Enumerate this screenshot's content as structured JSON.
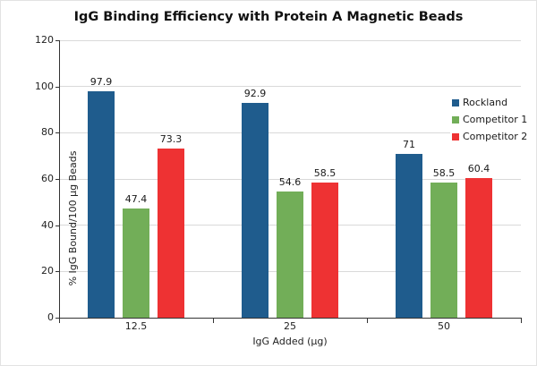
{
  "chart_data": {
    "type": "bar",
    "title": "IgG Binding Efficiency with Protein A Magnetic Beads",
    "xlabel": "IgG Added (µg)",
    "ylabel": "% IgG Bound/100 µg Beads",
    "categories": [
      "12.5",
      "25",
      "50"
    ],
    "series": [
      {
        "name": "Rockland",
        "color": "#1F5C8D",
        "values": [
          97.9,
          92.9,
          71.0
        ],
        "labels": [
          "97.9",
          "92.9",
          "71"
        ]
      },
      {
        "name": "Competitor 1",
        "color": "#72AE58",
        "values": [
          47.4,
          54.6,
          58.5
        ],
        "labels": [
          "47.4",
          "54.6",
          "58.5"
        ]
      },
      {
        "name": "Competitor 2",
        "color": "#EE3233",
        "values": [
          73.3,
          58.5,
          60.4
        ],
        "labels": [
          "73.3",
          "58.5",
          "60.4"
        ]
      }
    ],
    "ylim": [
      0,
      120
    ],
    "yticks": [
      0,
      20,
      40,
      60,
      80,
      100,
      120
    ],
    "grid": true,
    "legend_position": "right-overlay"
  },
  "colors": {
    "grid": "#d9d9d9",
    "axis": "#333333",
    "text": "#222222",
    "background": "#ffffff"
  }
}
